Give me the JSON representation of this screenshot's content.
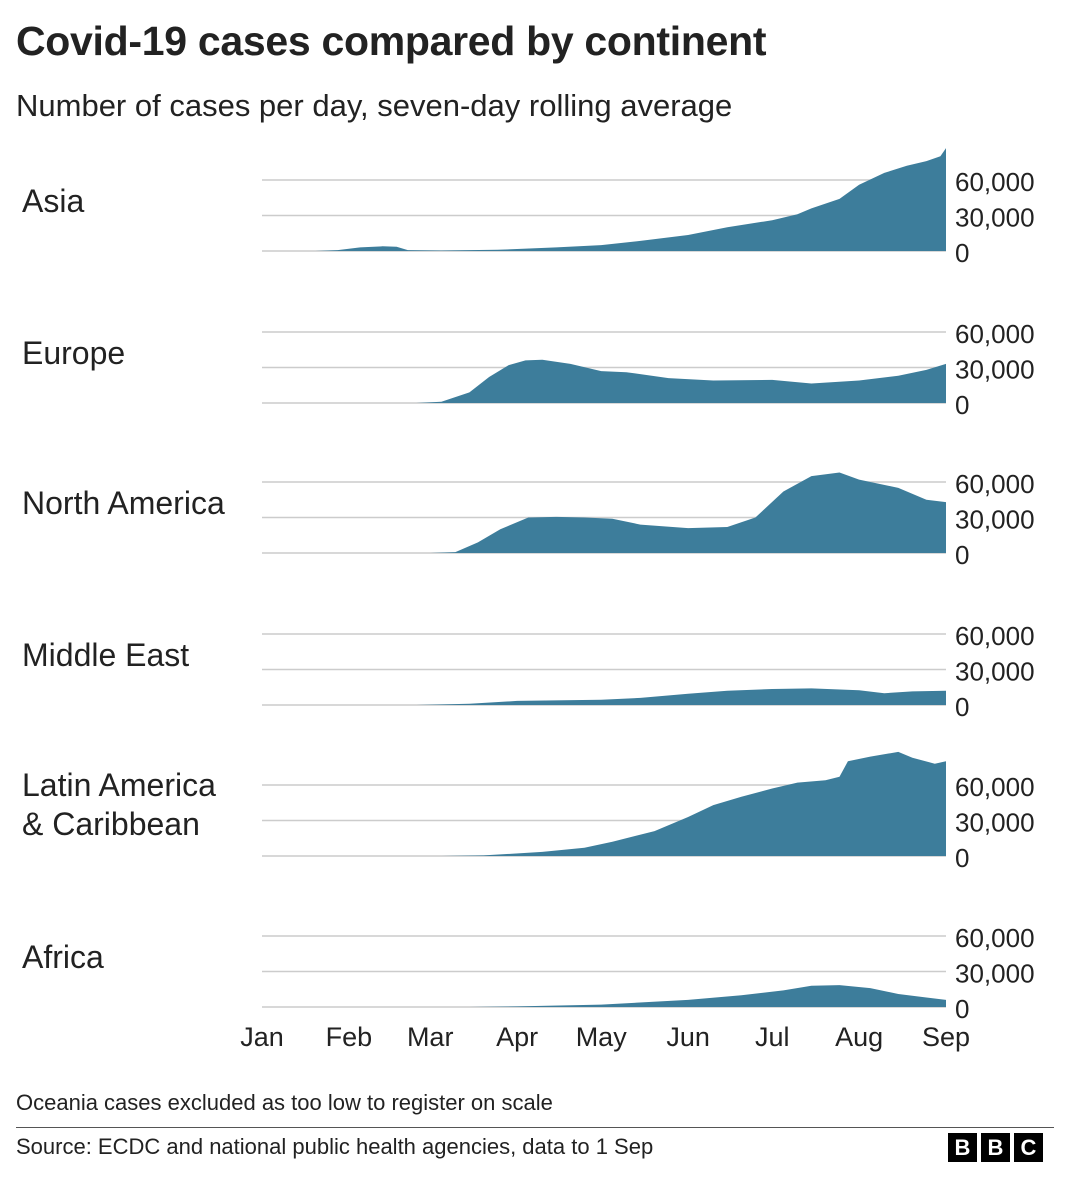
{
  "title": "Covid-19 cases compared by continent",
  "subtitle": "Number of cases per day, seven-day rolling average",
  "footnote": "Oceania cases excluded as too low to register on scale",
  "source": "Source: ECDC and national public health agencies, data to 1 Sep",
  "logo": [
    "B",
    "B",
    "C"
  ],
  "colors": {
    "area": "#3d7d9b",
    "grid": "#cccccc",
    "text": "#222222"
  },
  "chart_data": {
    "type": "area",
    "x_ticks": [
      "Jan",
      "Feb",
      "Mar",
      "Apr",
      "May",
      "Jun",
      "Jul",
      "Aug",
      "Sep"
    ],
    "y_ticks": [
      0,
      30000,
      60000
    ],
    "y_tick_labels": [
      "0",
      "30,000",
      "60,000"
    ],
    "ylim": [
      0,
      60000
    ],
    "x_range": [
      "2020-01-01",
      "2020-09-01"
    ],
    "panels": [
      {
        "label": [
          "Asia"
        ],
        "series": [
          [
            "2020-01-01",
            0
          ],
          [
            "2020-01-20",
            0
          ],
          [
            "2020-01-28",
            800
          ],
          [
            "2020-02-05",
            3000
          ],
          [
            "2020-02-13",
            4000
          ],
          [
            "2020-02-18",
            3600
          ],
          [
            "2020-02-22",
            800
          ],
          [
            "2020-03-05",
            400
          ],
          [
            "2020-03-25",
            1000
          ],
          [
            "2020-04-15",
            3000
          ],
          [
            "2020-05-01",
            5000
          ],
          [
            "2020-05-15",
            8500
          ],
          [
            "2020-06-01",
            13500
          ],
          [
            "2020-06-15",
            20000
          ],
          [
            "2020-07-01",
            26000
          ],
          [
            "2020-07-10",
            31000
          ],
          [
            "2020-07-15",
            36000
          ],
          [
            "2020-07-25",
            44000
          ],
          [
            "2020-08-01",
            56000
          ],
          [
            "2020-08-10",
            66000
          ],
          [
            "2020-08-18",
            72000
          ],
          [
            "2020-08-25",
            76000
          ],
          [
            "2020-08-30",
            80000
          ],
          [
            "2020-09-01",
            87000
          ]
        ]
      },
      {
        "label": [
          "Europe"
        ],
        "series": [
          [
            "2020-01-01",
            0
          ],
          [
            "2020-02-25",
            0
          ],
          [
            "2020-03-05",
            1000
          ],
          [
            "2020-03-15",
            9000
          ],
          [
            "2020-03-22",
            22000
          ],
          [
            "2020-03-29",
            32000
          ],
          [
            "2020-04-04",
            36000
          ],
          [
            "2020-04-10",
            36500
          ],
          [
            "2020-04-20",
            33000
          ],
          [
            "2020-05-01",
            27000
          ],
          [
            "2020-05-10",
            26000
          ],
          [
            "2020-05-25",
            21000
          ],
          [
            "2020-06-10",
            19000
          ],
          [
            "2020-07-01",
            19500
          ],
          [
            "2020-07-15",
            16500
          ],
          [
            "2020-08-01",
            19000
          ],
          [
            "2020-08-15",
            23000
          ],
          [
            "2020-08-25",
            28000
          ],
          [
            "2020-09-01",
            33000
          ]
        ]
      },
      {
        "label": [
          "North America"
        ],
        "series": [
          [
            "2020-01-01",
            0
          ],
          [
            "2020-03-01",
            0
          ],
          [
            "2020-03-10",
            800
          ],
          [
            "2020-03-18",
            9000
          ],
          [
            "2020-03-26",
            20000
          ],
          [
            "2020-04-05",
            30000
          ],
          [
            "2020-04-15",
            30500
          ],
          [
            "2020-04-25",
            30000
          ],
          [
            "2020-05-05",
            29000
          ],
          [
            "2020-05-15",
            24000
          ],
          [
            "2020-06-01",
            21000
          ],
          [
            "2020-06-15",
            22000
          ],
          [
            "2020-06-25",
            30000
          ],
          [
            "2020-07-05",
            52000
          ],
          [
            "2020-07-15",
            65000
          ],
          [
            "2020-07-25",
            68000
          ],
          [
            "2020-08-01",
            62000
          ],
          [
            "2020-08-15",
            55000
          ],
          [
            "2020-08-25",
            45000
          ],
          [
            "2020-09-01",
            43000
          ]
        ]
      },
      {
        "label": [
          "Middle East"
        ],
        "series": [
          [
            "2020-01-01",
            0
          ],
          [
            "2020-02-25",
            0
          ],
          [
            "2020-03-15",
            1000
          ],
          [
            "2020-04-01",
            3500
          ],
          [
            "2020-05-01",
            4500
          ],
          [
            "2020-05-15",
            6000
          ],
          [
            "2020-06-01",
            9500
          ],
          [
            "2020-06-15",
            12000
          ],
          [
            "2020-07-01",
            13500
          ],
          [
            "2020-07-15",
            14000
          ],
          [
            "2020-08-01",
            12500
          ],
          [
            "2020-08-10",
            10000
          ],
          [
            "2020-08-20",
            11500
          ],
          [
            "2020-09-01",
            12000
          ]
        ]
      },
      {
        "label": [
          "Latin America",
          "& Caribbean"
        ],
        "series": [
          [
            "2020-01-01",
            0
          ],
          [
            "2020-03-05",
            0
          ],
          [
            "2020-03-20",
            500
          ],
          [
            "2020-04-10",
            3500
          ],
          [
            "2020-04-25",
            7000
          ],
          [
            "2020-05-05",
            12000
          ],
          [
            "2020-05-20",
            21000
          ],
          [
            "2020-06-01",
            33000
          ],
          [
            "2020-06-10",
            43000
          ],
          [
            "2020-06-20",
            50000
          ],
          [
            "2020-07-01",
            57000
          ],
          [
            "2020-07-10",
            62000
          ],
          [
            "2020-07-20",
            64000
          ],
          [
            "2020-07-25",
            67000
          ],
          [
            "2020-07-28",
            80000
          ],
          [
            "2020-08-05",
            84000
          ],
          [
            "2020-08-15",
            88000
          ],
          [
            "2020-08-20",
            83000
          ],
          [
            "2020-08-28",
            78000
          ],
          [
            "2020-09-01",
            80000
          ]
        ]
      },
      {
        "label": [
          "Africa"
        ],
        "series": [
          [
            "2020-01-01",
            0
          ],
          [
            "2020-03-15",
            0
          ],
          [
            "2020-04-01",
            500
          ],
          [
            "2020-05-01",
            2000
          ],
          [
            "2020-06-01",
            6000
          ],
          [
            "2020-06-20",
            10000
          ],
          [
            "2020-07-05",
            14000
          ],
          [
            "2020-07-15",
            18000
          ],
          [
            "2020-07-25",
            18500
          ],
          [
            "2020-08-05",
            16000
          ],
          [
            "2020-08-15",
            11000
          ],
          [
            "2020-08-25",
            8000
          ],
          [
            "2020-09-01",
            6000
          ]
        ]
      }
    ]
  }
}
